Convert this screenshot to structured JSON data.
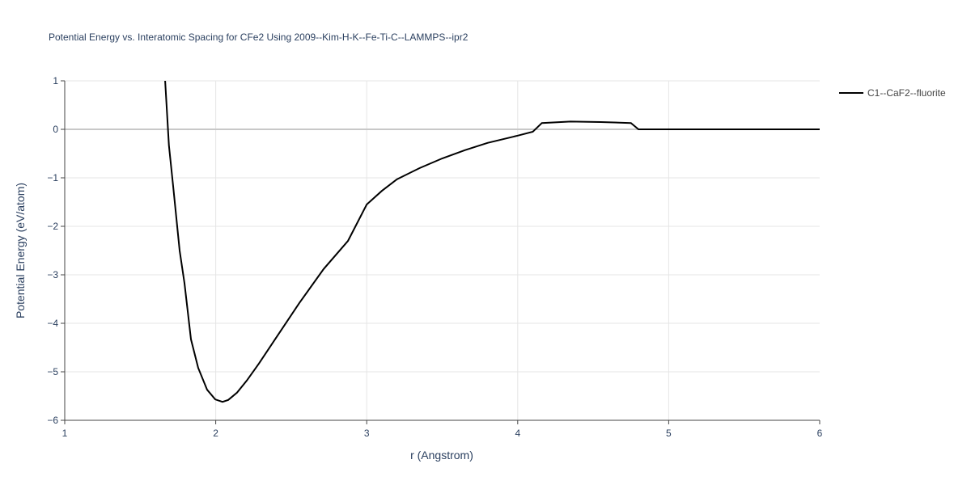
{
  "chart_data": {
    "type": "line",
    "title": "Potential Energy vs. Interatomic Spacing for CFe2 Using 2009--Kim-H-K--Fe-Ti-C--LAMMPS--ipr2",
    "x_label": "r (Angstrom)",
    "y_label": "Potential Energy (eV/atom)",
    "xlim": [
      1,
      6
    ],
    "ylim": [
      -6,
      1
    ],
    "xticks": [
      1,
      2,
      3,
      4,
      5,
      6
    ],
    "yticks": [
      {
        "value": -6,
        "label": "−6"
      },
      {
        "value": -5,
        "label": "−5"
      },
      {
        "value": -4,
        "label": "−4"
      },
      {
        "value": -3,
        "label": "−3"
      },
      {
        "value": -2,
        "label": "−2"
      },
      {
        "value": -1,
        "label": "−1"
      },
      0,
      1
    ],
    "grid": true,
    "legend": "top-right",
    "series": [
      {
        "name": "C1--CaF2--fluorite",
        "color": "#000000",
        "x": [
          1.665,
          1.69,
          1.718,
          1.761,
          1.793,
          1.836,
          1.884,
          1.943,
          1.997,
          2.045,
          2.083,
          2.141,
          2.206,
          2.286,
          2.393,
          2.554,
          2.715,
          2.876,
          3.0,
          3.1,
          3.2,
          3.35,
          3.5,
          3.65,
          3.8,
          4.0,
          4.1,
          4.16,
          4.35,
          4.55,
          4.75,
          4.8,
          5.0,
          5.5,
          6.0
        ],
        "values": [
          1.0,
          -0.33,
          -1.17,
          -2.5,
          -3.17,
          -4.33,
          -4.92,
          -5.37,
          -5.57,
          -5.62,
          -5.58,
          -5.43,
          -5.18,
          -4.83,
          -4.33,
          -3.58,
          -2.88,
          -2.3,
          -1.55,
          -1.27,
          -1.03,
          -0.8,
          -0.6,
          -0.43,
          -0.28,
          -0.13,
          -0.05,
          0.13,
          0.16,
          0.15,
          0.13,
          0.0,
          0.0,
          0.0,
          0.0
        ]
      }
    ]
  }
}
